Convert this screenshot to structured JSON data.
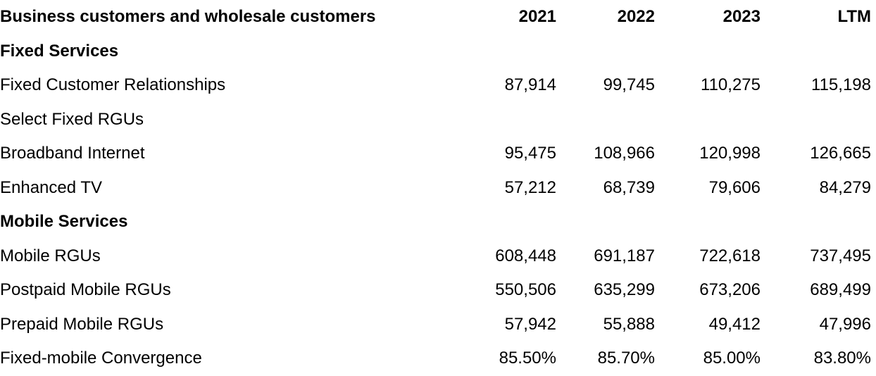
{
  "table": {
    "header": {
      "label": "Business customers and wholesale customers",
      "columns": [
        "2021",
        "2022",
        "2023",
        "LTM"
      ]
    },
    "rows": [
      {
        "label": "Fixed Services",
        "section": true,
        "values": [
          "",
          "",
          "",
          ""
        ]
      },
      {
        "label": "Fixed Customer Relationships",
        "section": false,
        "values": [
          "87,914",
          "99,745",
          "110,275",
          "115,198"
        ]
      },
      {
        "label": "Select Fixed RGUs",
        "section": false,
        "values": [
          "",
          "",
          "",
          ""
        ]
      },
      {
        "label": "Broadband Internet",
        "section": false,
        "values": [
          "95,475",
          "108,966",
          "120,998",
          "126,665"
        ]
      },
      {
        "label": "Enhanced TV",
        "section": false,
        "values": [
          "57,212",
          "68,739",
          "79,606",
          "84,279"
        ]
      },
      {
        "label": "Mobile Services",
        "section": true,
        "values": [
          "",
          "",
          "",
          ""
        ]
      },
      {
        "label": "Mobile RGUs",
        "section": false,
        "values": [
          "608,448",
          "691,187",
          "722,618",
          "737,495"
        ]
      },
      {
        "label": "Postpaid Mobile RGUs",
        "section": false,
        "values": [
          "550,506",
          "635,299",
          "673,206",
          "689,499"
        ]
      },
      {
        "label": "Prepaid Mobile RGUs",
        "section": false,
        "values": [
          "57,942",
          "55,888",
          "49,412",
          "47,996"
        ]
      },
      {
        "label": "Fixed-mobile Convergence",
        "section": false,
        "values": [
          "85.50%",
          "85.70%",
          "85.00%",
          "83.80%"
        ]
      }
    ]
  },
  "chart_data": {
    "type": "table",
    "title": "Business customers and wholesale customers",
    "columns": [
      "2021",
      "2022",
      "2023",
      "LTM"
    ],
    "series": [
      {
        "name": "Fixed Customer Relationships",
        "values": [
          87914,
          99745,
          110275,
          115198
        ]
      },
      {
        "name": "Broadband Internet",
        "values": [
          95475,
          108966,
          120998,
          126665
        ]
      },
      {
        "name": "Enhanced TV",
        "values": [
          57212,
          68739,
          79606,
          84279
        ]
      },
      {
        "name": "Mobile RGUs",
        "values": [
          608448,
          691187,
          722618,
          737495
        ]
      },
      {
        "name": "Postpaid Mobile RGUs",
        "values": [
          550506,
          635299,
          673206,
          689499
        ]
      },
      {
        "name": "Prepaid Mobile RGUs",
        "values": [
          57942,
          55888,
          49412,
          47996
        ]
      },
      {
        "name": "Fixed-mobile Convergence (%)",
        "values": [
          85.5,
          85.7,
          85.0,
          83.8
        ]
      }
    ]
  },
  "colors": {
    "text": "#000000",
    "background": "#ffffff"
  }
}
